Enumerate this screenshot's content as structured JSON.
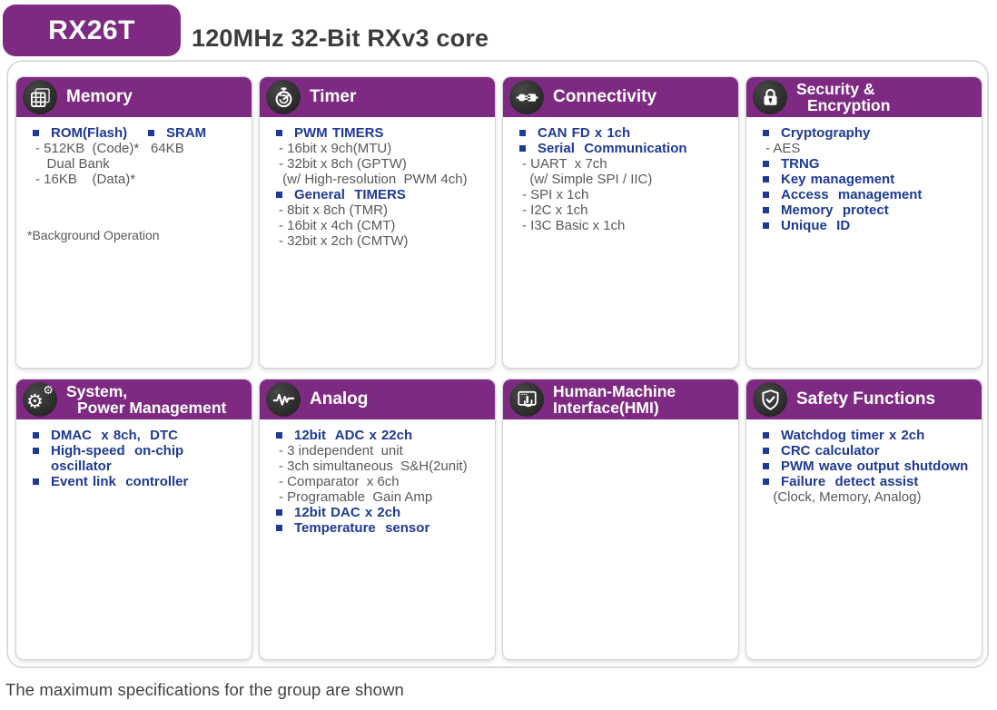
{
  "header": {
    "badge": "RX26T",
    "title": "120MHz 32-Bit RXv3 core"
  },
  "footer": {
    "note": "The maximum specifications for the group are shown"
  },
  "colors": {
    "accent_purple": "#7e2a83",
    "bullet_blue": "#1e3a96",
    "body_gray": "#595959",
    "icon_circle": "#2b2b2b"
  },
  "cards": [
    {
      "id": "memory",
      "icon": "memory-chip-icon",
      "title_lines": [
        "Memory"
      ],
      "title_indent2": false,
      "columns": [
        {
          "items": [
            {
              "style": "bullet",
              "text": "ROM(Flash)"
            },
            {
              "style": "plain",
              "text": "- 512KB  (Code)*"
            },
            {
              "style": "plain",
              "text": "   Dual Bank"
            },
            {
              "style": "plain",
              "text": "- 16KB    (Data)*"
            }
          ]
        },
        {
          "items": [
            {
              "style": "bullet",
              "text": "SRAM"
            },
            {
              "style": "plain",
              "text": "64KB"
            }
          ]
        }
      ],
      "footnote": "*Background Operation"
    },
    {
      "id": "timer",
      "icon": "stopwatch-icon",
      "title_lines": [
        "Timer"
      ],
      "title_indent2": false,
      "columns": [
        {
          "items": [
            {
              "style": "bullet",
              "text": "PWM TIMERS"
            },
            {
              "style": "plain",
              "text": "- 16bit x 9ch(MTU)"
            },
            {
              "style": "plain",
              "text": "- 32bit x 8ch (GPTW)"
            },
            {
              "style": "plain",
              "text": " (w/ High-resolution  PWM 4ch)"
            },
            {
              "style": "bullet",
              "text": "General  TIMERS"
            },
            {
              "style": "plain",
              "text": "- 8bit x 8ch (TMR)"
            },
            {
              "style": "plain",
              "text": "- 16bit x 4ch (CMT)"
            },
            {
              "style": "plain",
              "text": "- 32bit x 2ch (CMTW)"
            }
          ]
        }
      ],
      "footnote": ""
    },
    {
      "id": "connectivity",
      "icon": "plug-icon",
      "title_lines": [
        "Connectivity"
      ],
      "title_indent2": false,
      "columns": [
        {
          "items": [
            {
              "style": "bullet",
              "text": "CAN FD x 1ch"
            },
            {
              "style": "bullet",
              "text": "Serial  Communication"
            },
            {
              "style": "plain",
              "text": "- UART  x 7ch"
            },
            {
              "style": "plain",
              "text": "  (w/ Simple SPI / IIC)"
            },
            {
              "style": "plain",
              "text": "- SPI x 1ch"
            },
            {
              "style": "plain",
              "text": "- I2C x 1ch"
            },
            {
              "style": "plain",
              "text": "- I3C Basic x 1ch"
            }
          ]
        }
      ],
      "footnote": ""
    },
    {
      "id": "security-encryption",
      "icon": "lock-icon",
      "title_lines": [
        "Security &",
        "Encryption"
      ],
      "title_indent2": true,
      "columns": [
        {
          "items": [
            {
              "style": "bullet",
              "text": "Cryptography"
            },
            {
              "style": "plain",
              "text": "- AES"
            },
            {
              "style": "bullet",
              "text": "TRNG"
            },
            {
              "style": "bullet",
              "text": "Key management"
            },
            {
              "style": "bullet",
              "text": "Access  management"
            },
            {
              "style": "bullet",
              "text": "Memory  protect"
            },
            {
              "style": "bullet",
              "text": "Unique  ID"
            }
          ]
        }
      ],
      "footnote": ""
    },
    {
      "id": "system-power-management",
      "icon": "gears-icon",
      "title_lines": [
        "System,",
        "Power Management"
      ],
      "title_indent2": true,
      "columns": [
        {
          "items": [
            {
              "style": "bullet",
              "text": "DMAC  x 8ch,  DTC"
            },
            {
              "style": "bullet",
              "text": "High-speed  on-chip oscillator"
            },
            {
              "style": "bullet",
              "text": "Event link  controller"
            }
          ]
        }
      ],
      "footnote": ""
    },
    {
      "id": "analog",
      "icon": "waveform-icon",
      "title_lines": [
        "Analog"
      ],
      "title_indent2": false,
      "columns": [
        {
          "items": [
            {
              "style": "bullet",
              "text": "12bit  ADC x 22ch"
            },
            {
              "style": "plain",
              "text": "- 3 independent  unit"
            },
            {
              "style": "plain",
              "text": "- 3ch simultaneous  S&H(2unit)"
            },
            {
              "style": "plain",
              "text": "- Comparator  x 6ch"
            },
            {
              "style": "plain",
              "text": "- Programable  Gain Amp"
            },
            {
              "style": "bullet",
              "text": "12bit DAC x 2ch"
            },
            {
              "style": "bullet",
              "text": "Temperature  sensor"
            }
          ]
        }
      ],
      "footnote": ""
    },
    {
      "id": "human-machine-interface",
      "icon": "touch-screen-icon",
      "title_lines": [
        "Human-Machine",
        "Interface(HMI)"
      ],
      "title_indent2": false,
      "columns": [
        {
          "items": []
        }
      ],
      "footnote": ""
    },
    {
      "id": "safety-functions",
      "icon": "shield-check-icon",
      "title_lines": [
        "Safety Functions"
      ],
      "title_indent2": false,
      "columns": [
        {
          "items": [
            {
              "style": "bullet",
              "text": "Watchdog timer x 2ch"
            },
            {
              "style": "bullet",
              "text": "CRC calculator"
            },
            {
              "style": "bullet",
              "text": "PWM wave output shutdown"
            },
            {
              "style": "bullet",
              "text": "Failure  detect assist"
            },
            {
              "style": "plain",
              "text": "  (Clock, Memory, Analog)"
            }
          ]
        }
      ],
      "footnote": ""
    }
  ]
}
